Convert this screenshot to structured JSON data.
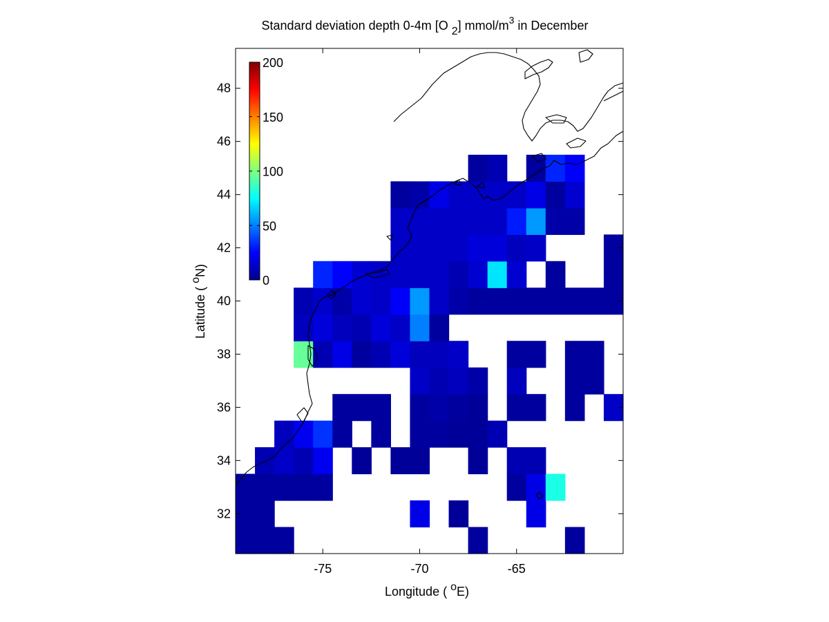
{
  "chart_data": {
    "type": "heatmap",
    "title": {
      "prefix": "Standard deviation depth 0-4m [O ",
      "sub": "2",
      "mid": "] mmol/m",
      "sup": "3",
      "suffix": " in December"
    },
    "xlabel": {
      "prefix": "Longitude ( ",
      "sup": "o",
      "suffix": "E)"
    },
    "ylabel": {
      "prefix": "Latitude ( ",
      "sup": "o",
      "suffix": "N)"
    },
    "xlim": [
      -79.5,
      -59.5
    ],
    "ylim": [
      30.5,
      49.5
    ],
    "x_ticks": [
      -75,
      -70,
      -65
    ],
    "x_tick_labels": [
      "-75",
      "-70",
      "-65"
    ],
    "y_ticks": [
      32,
      34,
      36,
      38,
      40,
      42,
      44,
      46,
      48
    ],
    "y_tick_labels": [
      "32",
      "34",
      "36",
      "38",
      "40",
      "42",
      "44",
      "46",
      "48"
    ],
    "colorbar": {
      "colormap": "jet",
      "range": [
        0,
        200
      ],
      "ticks": [
        0,
        50,
        100,
        150,
        200
      ],
      "tick_labels": [
        "0",
        "50",
        "100",
        "150",
        "200"
      ],
      "placement": "inside upper-left"
    },
    "grid": false,
    "cell_size_deg": 1,
    "columns_lon_centers": [
      -79,
      -78,
      -77,
      -76,
      -75,
      -74,
      -73,
      -72,
      -71,
      -70,
      -69,
      -68,
      -67,
      -66,
      -65,
      -64,
      -63,
      -62,
      -61,
      -60
    ],
    "rows_lat_centers": [
      31,
      32,
      33,
      34,
      35,
      36,
      37,
      38,
      39,
      40,
      41,
      42,
      43,
      44,
      45
    ],
    "grid_values": [
      [
        6,
        6,
        6,
        null,
        null,
        null,
        null,
        null,
        null,
        null,
        null,
        null,
        6,
        null,
        null,
        null,
        null,
        6,
        null,
        null
      ],
      [
        6,
        6,
        null,
        null,
        null,
        null,
        null,
        null,
        null,
        20,
        null,
        5,
        null,
        null,
        null,
        20,
        null,
        null,
        null,
        null
      ],
      [
        6,
        6,
        6,
        6,
        6,
        null,
        null,
        null,
        null,
        null,
        null,
        null,
        null,
        null,
        6,
        20,
        80,
        null,
        null,
        null
      ],
      [
        null,
        10,
        14,
        10,
        22,
        null,
        5,
        null,
        5,
        5,
        null,
        null,
        5,
        null,
        10,
        10,
        null,
        null,
        null,
        null
      ],
      [
        null,
        null,
        12,
        22,
        35,
        6,
        null,
        6,
        null,
        6,
        6,
        5,
        5,
        10,
        null,
        null,
        null,
        null,
        null,
        null
      ],
      [
        null,
        null,
        null,
        null,
        null,
        6,
        6,
        6,
        null,
        6,
        8,
        6,
        5,
        null,
        6,
        6,
        null,
        6,
        null,
        14
      ],
      [
        null,
        null,
        null,
        null,
        null,
        null,
        null,
        null,
        null,
        14,
        10,
        12,
        8,
        null,
        12,
        null,
        null,
        6,
        6,
        null
      ],
      [
        null,
        null,
        null,
        95,
        10,
        20,
        6,
        10,
        18,
        12,
        12,
        14,
        null,
        null,
        6,
        6,
        null,
        6,
        6,
        null
      ],
      [
        null,
        null,
        null,
        12,
        18,
        12,
        10,
        18,
        14,
        50,
        6,
        null,
        null,
        null,
        null,
        null,
        null,
        null,
        null,
        null
      ],
      [
        null,
        null,
        null,
        10,
        15,
        8,
        16,
        14,
        24,
        55,
        14,
        8,
        6,
        6,
        6,
        6,
        6,
        6,
        6,
        6
      ],
      [
        null,
        null,
        null,
        null,
        32,
        25,
        16,
        14,
        14,
        14,
        14,
        10,
        16,
        70,
        16,
        null,
        6,
        null,
        null,
        6
      ],
      [
        null,
        null,
        null,
        null,
        null,
        null,
        null,
        null,
        14,
        14,
        14,
        14,
        18,
        18,
        12,
        14,
        null,
        null,
        null,
        6
      ],
      [
        null,
        null,
        null,
        null,
        null,
        null,
        null,
        null,
        14,
        14,
        14,
        14,
        14,
        14,
        30,
        55,
        8,
        8,
        null,
        null
      ],
      [
        null,
        null,
        null,
        null,
        null,
        null,
        null,
        null,
        6,
        8,
        20,
        14,
        14,
        14,
        14,
        20,
        6,
        16,
        null,
        null
      ],
      [
        null,
        null,
        null,
        null,
        null,
        null,
        null,
        null,
        null,
        null,
        null,
        null,
        6,
        10,
        null,
        6,
        32,
        24,
        null,
        null
      ]
    ]
  }
}
